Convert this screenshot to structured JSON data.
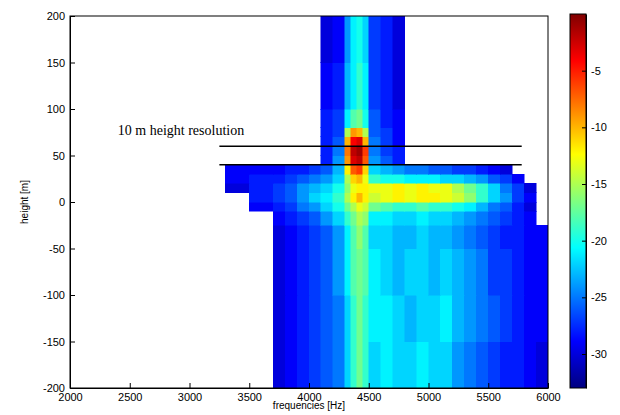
{
  "chart_data": {
    "type": "heatmap",
    "x_label": "frequencies [Hz]",
    "y_label": "height [m]",
    "xlim": [
      2000,
      6000
    ],
    "xticks": [
      2000,
      2500,
      3000,
      3500,
      4000,
      4500,
      5000,
      5500,
      6000
    ],
    "ylim": [
      -200,
      200
    ],
    "yticks": [
      -200,
      -150,
      -100,
      -50,
      0,
      50,
      100,
      150,
      200
    ],
    "x_edges": [
      2000,
      3300,
      3500,
      3700,
      3800,
      3900,
      4000,
      4100,
      4200,
      4300,
      4350,
      4400,
      4450,
      4500,
      4600,
      4700,
      4800,
      4900,
      5000,
      5100,
      5200,
      5300,
      5400,
      5500,
      5600,
      5700,
      5800,
      5900,
      6000
    ],
    "y_edges": [
      -200,
      -150,
      -100,
      -50,
      -25,
      -10,
      0,
      10,
      20,
      30,
      40,
      50,
      60,
      70,
      80,
      100,
      150,
      200
    ],
    "z": [
      [
        null,
        null,
        null,
        -30,
        -29,
        -28,
        -27,
        -26,
        -25,
        -22,
        -19,
        -17,
        -19,
        -22,
        -21,
        -22,
        -22,
        -21,
        -22,
        -22,
        -24,
        -25,
        -26,
        -27,
        -28,
        -28,
        -29,
        -30
      ],
      [
        null,
        null,
        null,
        -30,
        -29,
        -28,
        -27,
        -26,
        -25,
        -22,
        -19,
        -17,
        -19,
        -21,
        -21,
        -22,
        -23,
        -22,
        -22,
        -21,
        -23,
        -24,
        -25,
        -26,
        -27,
        -28,
        -29,
        -29
      ],
      [
        null,
        null,
        null,
        -30,
        -29,
        -28,
        -27,
        -26,
        -24,
        -21,
        -18,
        -17,
        -18,
        -21,
        -22,
        -23,
        -22,
        -22,
        -23,
        -22,
        -23,
        -24,
        -25,
        -27,
        -27,
        -28,
        -29,
        -29
      ],
      [
        null,
        null,
        null,
        -30,
        -29,
        -28,
        -27,
        -26,
        -24,
        -21,
        -18,
        -16,
        -18,
        -22,
        -22,
        -23,
        -23,
        -22,
        -23,
        -23,
        -24,
        -25,
        -26,
        -27,
        -28,
        -28,
        -29,
        -29
      ],
      [
        null,
        null,
        null,
        -29,
        -28,
        -27,
        -26,
        -24,
        -22,
        -19,
        -17,
        -15,
        -16,
        -21,
        -21,
        -22,
        -22,
        -21,
        -22,
        -22,
        -23,
        -24,
        -25,
        -26,
        -27,
        -28,
        -29,
        null
      ],
      [
        null,
        null,
        -29,
        -28,
        -27,
        -25,
        -24,
        -22,
        -20,
        -17,
        -15,
        -13,
        -14,
        -17,
        -18,
        -19,
        -19,
        -18,
        -19,
        -19,
        -20,
        -21,
        -23,
        -25,
        -26,
        -28,
        -30,
        null
      ],
      [
        null,
        null,
        -28,
        -27,
        -26,
        -24,
        -22,
        -21,
        -19,
        -15,
        -12,
        -10,
        -12,
        -14,
        -13,
        -12,
        -13,
        -12,
        -12,
        -13,
        -14,
        -16,
        -19,
        -22,
        -24,
        -27,
        -29,
        null
      ],
      [
        null,
        -30,
        -28,
        -27,
        -26,
        -24,
        -23,
        -22,
        -20,
        -16,
        -13,
        -12,
        -12,
        -13,
        -13,
        -12,
        -13,
        -12,
        -13,
        -13,
        -15,
        -17,
        -19,
        -22,
        -25,
        -27,
        -30,
        null
      ],
      [
        null,
        -29,
        -28,
        -28,
        -27,
        -26,
        -25,
        -24,
        -22,
        -15,
        -11,
        -10,
        -13,
        -19,
        -20,
        -20,
        -21,
        -21,
        -21,
        -22,
        -22,
        -23,
        -24,
        -26,
        -27,
        -29,
        null,
        null
      ],
      [
        null,
        -29,
        -29,
        -29,
        -28,
        -28,
        -27,
        -26,
        -23,
        -12,
        -7,
        -6,
        -11,
        -22,
        -23,
        -24,
        -25,
        -25,
        -26,
        -26,
        -27,
        -27,
        -28,
        -29,
        -30,
        null,
        null,
        null
      ],
      [
        null,
        null,
        null,
        null,
        null,
        null,
        null,
        -28,
        -24,
        -9,
        -3,
        -2,
        -7,
        -24,
        -26,
        -28,
        null,
        null,
        null,
        null,
        null,
        null,
        null,
        null,
        null,
        null,
        null,
        null
      ],
      [
        null,
        null,
        null,
        null,
        null,
        null,
        null,
        -28,
        -25,
        -8,
        -2,
        -1,
        -6,
        -25,
        -27,
        -28,
        null,
        null,
        null,
        null,
        null,
        null,
        null,
        null,
        null,
        null,
        null,
        null
      ],
      [
        null,
        null,
        null,
        null,
        null,
        null,
        null,
        -28,
        -26,
        -10,
        -4,
        -3,
        -10,
        -25,
        -27,
        -29,
        null,
        null,
        null,
        null,
        null,
        null,
        null,
        null,
        null,
        null,
        null,
        null
      ],
      [
        null,
        null,
        null,
        null,
        null,
        null,
        null,
        -28,
        -27,
        -15,
        -9,
        -10,
        -15,
        -26,
        -27,
        -29,
        null,
        null,
        null,
        null,
        null,
        null,
        null,
        null,
        null,
        null,
        null,
        null
      ],
      [
        null,
        null,
        null,
        null,
        null,
        null,
        null,
        -28,
        -27,
        -21,
        -18,
        -17,
        -20,
        -26,
        -28,
        -29,
        null,
        null,
        null,
        null,
        null,
        null,
        null,
        null,
        null,
        null,
        null,
        null
      ],
      [
        null,
        null,
        null,
        null,
        null,
        null,
        null,
        -29,
        -28,
        -23,
        -21,
        -19,
        -21,
        -27,
        -28,
        -30,
        null,
        null,
        null,
        null,
        null,
        null,
        null,
        null,
        null,
        null,
        null,
        null
      ],
      [
        null,
        null,
        null,
        null,
        null,
        null,
        null,
        -30,
        -29,
        -24,
        -21,
        -20,
        -22,
        -27,
        -28,
        -30,
        null,
        null,
        null,
        null,
        null,
        null,
        null,
        null,
        null,
        null,
        null,
        null
      ]
    ],
    "zlim": [
      -33,
      0
    ],
    "zticks": [
      -30,
      -25,
      -20,
      -15,
      -10,
      -5
    ],
    "annotations": [
      {
        "text": "10 m height resolution",
        "x": 2400,
        "y": 72
      }
    ],
    "hlines": [
      {
        "y": 60,
        "x": [
          3250,
          5780
        ]
      },
      {
        "y": 40,
        "x": [
          3250,
          5780
        ]
      }
    ]
  }
}
